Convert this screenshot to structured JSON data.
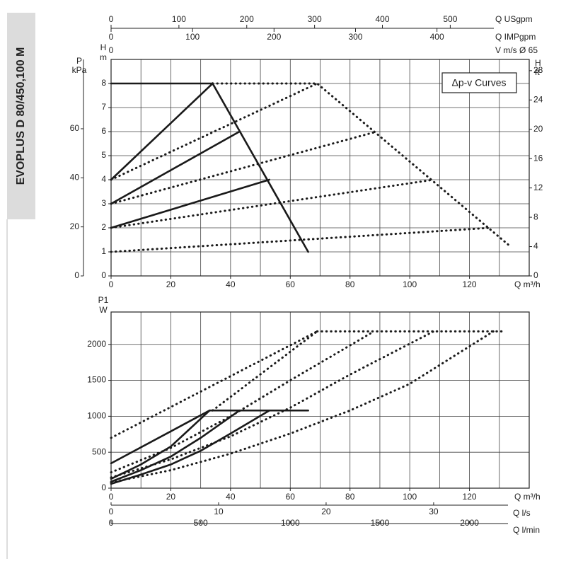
{
  "header": {
    "title": "EVOPLUS D 80/450,100 M"
  },
  "chart_data": [
    {
      "type": "line",
      "annotation": "Δp-v Curves",
      "xlabel": "Q m³/h",
      "xlim": [
        0,
        140
      ],
      "xticks": [
        0,
        20,
        40,
        60,
        80,
        100,
        120
      ],
      "ylabel": [
        "H",
        "m"
      ],
      "ylim": [
        0,
        9
      ],
      "yticks": [
        0,
        1,
        2,
        3,
        4,
        5,
        6,
        7,
        8
      ],
      "grid": true,
      "left_axis": {
        "label": [
          "P",
          "kPa"
        ],
        "lim": [
          0,
          88.26
        ],
        "ticks": [
          0,
          20,
          40,
          60
        ]
      },
      "right_axis": {
        "label": [
          "H",
          "ft"
        ],
        "lim": [
          0,
          29.53
        ],
        "ticks": [
          0,
          4,
          8,
          12,
          16,
          20,
          24,
          28
        ]
      },
      "top_axes": [
        {
          "label": "Q USgpm",
          "lim": [
            0,
            616.4
          ],
          "ticks": [
            0,
            100,
            200,
            300,
            400,
            500
          ]
        },
        {
          "label": "Q IMPgpm",
          "lim": [
            0,
            513.2
          ],
          "ticks": [
            0,
            100,
            200,
            300,
            400
          ]
        },
        {
          "label": "V m/s Ø 65",
          "lim": [
            0,
            11.72
          ],
          "ticks": [
            0
          ]
        }
      ],
      "series": [
        {
          "color": "#1a1a1a",
          "style": "solid",
          "x": [
            0,
            34
          ],
          "values": [
            8,
            8
          ]
        },
        {
          "color": "#1a1a1a",
          "style": "solid",
          "x": [
            0,
            34,
            66
          ],
          "values": [
            4,
            8,
            1
          ]
        },
        {
          "color": "#1a1a1a",
          "style": "solid",
          "x": [
            0,
            43
          ],
          "values": [
            3,
            6
          ]
        },
        {
          "color": "#1a1a1a",
          "style": "solid",
          "x": [
            0,
            53
          ],
          "values": [
            2,
            4
          ]
        },
        {
          "color": "#1a1a1a",
          "style": "dotted",
          "x": [
            34,
            69,
            133
          ],
          "values": [
            8,
            8,
            1.3
          ]
        },
        {
          "color": "#1a1a1a",
          "style": "dotted",
          "x": [
            0,
            69
          ],
          "values": [
            4,
            8
          ]
        },
        {
          "color": "#1a1a1a",
          "style": "dotted",
          "x": [
            0,
            89
          ],
          "values": [
            3,
            6
          ]
        },
        {
          "color": "#1a1a1a",
          "style": "dotted",
          "x": [
            0,
            108
          ],
          "values": [
            2,
            4
          ]
        },
        {
          "color": "#1a1a1a",
          "style": "dotted",
          "x": [
            0,
            127
          ],
          "values": [
            1,
            2
          ]
        }
      ]
    },
    {
      "type": "line",
      "xlabel": "Q m³/h",
      "xlim": [
        0,
        140
      ],
      "xticks": [
        0,
        20,
        40,
        60,
        80,
        100,
        120
      ],
      "ylabel": [
        "P1",
        "W"
      ],
      "ylim": [
        0,
        2450
      ],
      "yticks": [
        0,
        500,
        1000,
        1500,
        2000
      ],
      "grid": true,
      "bottom_axes": [
        {
          "label": "Q l/s",
          "lim": [
            0,
            38.89
          ],
          "ticks": [
            0,
            10,
            20,
            30
          ]
        },
        {
          "label": "Q l/min",
          "lim": [
            0,
            2333.3
          ],
          "ticks": [
            0,
            500,
            1000,
            1500,
            2000
          ]
        }
      ],
      "series": [
        {
          "color": "#1a1a1a",
          "style": "solid",
          "x": [
            33,
            66
          ],
          "values": [
            1080,
            1080
          ]
        },
        {
          "color": "#1a1a1a",
          "style": "solid",
          "x": [
            0,
            33
          ],
          "values": [
            345,
            1080
          ]
        },
        {
          "color": "#1a1a1a",
          "style": "solid",
          "x": [
            0,
            10,
            20,
            33
          ],
          "values": [
            130,
            330,
            580,
            1080
          ]
        },
        {
          "color": "#1a1a1a",
          "style": "solid",
          "x": [
            0,
            10,
            20,
            30,
            43
          ],
          "values": [
            90,
            250,
            440,
            700,
            1080
          ]
        },
        {
          "color": "#1a1a1a",
          "style": "solid",
          "x": [
            0,
            10,
            20,
            30,
            40,
            53
          ],
          "values": [
            60,
            190,
            330,
            520,
            760,
            1080
          ]
        },
        {
          "color": "#1a1a1a",
          "style": "dotted",
          "x": [
            0,
            69
          ],
          "values": [
            700,
            2180
          ]
        },
        {
          "color": "#1a1a1a",
          "style": "dotted",
          "x": [
            69,
            132
          ],
          "values": [
            2180,
            2180
          ]
        },
        {
          "color": "#1a1a1a",
          "style": "dotted",
          "x": [
            34,
            69
          ],
          "values": [
            1080,
            2180
          ]
        },
        {
          "color": "#1a1a1a",
          "style": "dotted",
          "x": [
            0,
            20,
            40,
            60,
            88
          ],
          "values": [
            220,
            560,
            1000,
            1500,
            2180
          ]
        },
        {
          "color": "#1a1a1a",
          "style": "dotted",
          "x": [
            0,
            20,
            40,
            60,
            80,
            108
          ],
          "values": [
            150,
            400,
            720,
            1120,
            1580,
            2180
          ]
        },
        {
          "color": "#1a1a1a",
          "style": "dotted",
          "x": [
            0,
            20,
            40,
            60,
            80,
            100,
            128
          ],
          "values": [
            80,
            250,
            480,
            760,
            1080,
            1450,
            2180
          ]
        }
      ]
    }
  ]
}
